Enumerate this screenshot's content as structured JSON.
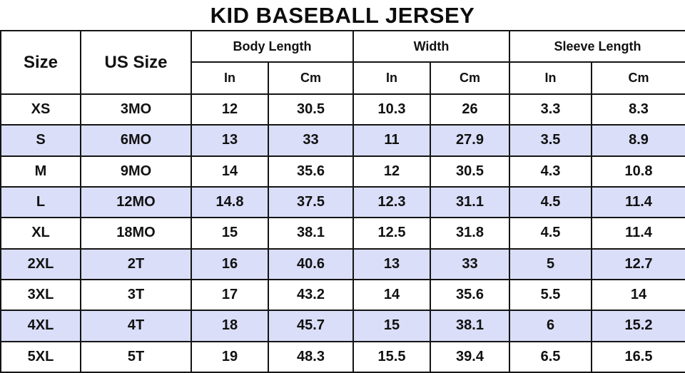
{
  "title": "KID BASEBALL JERSEY",
  "colors": {
    "row_shade": "#dadef8",
    "border": "#141414",
    "text": "#111111",
    "background": "#ffffff"
  },
  "table": {
    "headers": {
      "size": "Size",
      "us_size": "US Size",
      "groups": [
        {
          "label": "Body Length"
        },
        {
          "label": "Width"
        },
        {
          "label": "Sleeve Length"
        }
      ],
      "units": [
        "In",
        "Cm"
      ]
    },
    "rows": [
      {
        "size": "XS",
        "us": "3MO",
        "values": [
          "12",
          "30.5",
          "10.3",
          "26",
          "3.3",
          "8.3"
        ]
      },
      {
        "size": "S",
        "us": "6MO",
        "values": [
          "13",
          "33",
          "11",
          "27.9",
          "3.5",
          "8.9"
        ]
      },
      {
        "size": "M",
        "us": "9MO",
        "values": [
          "14",
          "35.6",
          "12",
          "30.5",
          "4.3",
          "10.8"
        ]
      },
      {
        "size": "L",
        "us": "12MO",
        "values": [
          "14.8",
          "37.5",
          "12.3",
          "31.1",
          "4.5",
          "11.4"
        ]
      },
      {
        "size": "XL",
        "us": "18MO",
        "values": [
          "15",
          "38.1",
          "12.5",
          "31.8",
          "4.5",
          "11.4"
        ]
      },
      {
        "size": "2XL",
        "us": "2T",
        "values": [
          "16",
          "40.6",
          "13",
          "33",
          "5",
          "12.7"
        ]
      },
      {
        "size": "3XL",
        "us": "3T",
        "values": [
          "17",
          "43.2",
          "14",
          "35.6",
          "5.5",
          "14"
        ]
      },
      {
        "size": "4XL",
        "us": "4T",
        "values": [
          "18",
          "45.7",
          "15",
          "38.1",
          "6",
          "15.2"
        ]
      },
      {
        "size": "5XL",
        "us": "5T",
        "values": [
          "19",
          "48.3",
          "15.5",
          "39.4",
          "6.5",
          "16.5"
        ]
      }
    ]
  },
  "chart_data": {
    "type": "table",
    "title": "KID BASEBALL JERSEY",
    "columns": [
      "Size",
      "US Size",
      "Body Length In",
      "Body Length Cm",
      "Width In",
      "Width Cm",
      "Sleeve Length In",
      "Sleeve Length Cm"
    ],
    "rows": [
      [
        "XS",
        "3MO",
        12,
        30.5,
        10.3,
        26,
        3.3,
        8.3
      ],
      [
        "S",
        "6MO",
        13,
        33,
        11,
        27.9,
        3.5,
        8.9
      ],
      [
        "M",
        "9MO",
        14,
        35.6,
        12,
        30.5,
        4.3,
        10.8
      ],
      [
        "L",
        "12MO",
        14.8,
        37.5,
        12.3,
        31.1,
        4.5,
        11.4
      ],
      [
        "XL",
        "18MO",
        15,
        38.1,
        12.5,
        31.8,
        4.5,
        11.4
      ],
      [
        "2XL",
        "2T",
        16,
        40.6,
        13,
        33,
        5,
        12.7
      ],
      [
        "3XL",
        "3T",
        17,
        43.2,
        14,
        35.6,
        5.5,
        14
      ],
      [
        "4XL",
        "4T",
        18,
        45.7,
        15,
        38.1,
        6,
        15.2
      ],
      [
        "5XL",
        "5T",
        19,
        48.3,
        15.5,
        39.4,
        6.5,
        16.5
      ]
    ],
    "layout": {
      "shaded_row_color": "#dadef8",
      "shading": "alternating starting at second data row",
      "grid": true
    }
  }
}
